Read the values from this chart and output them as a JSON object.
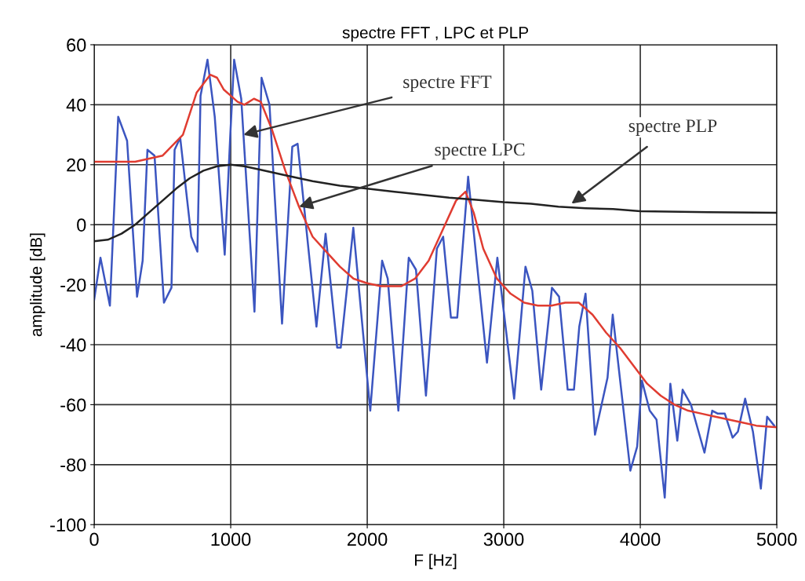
{
  "chart_data": {
    "type": "line",
    "title": "spectre FFT , LPC et PLP",
    "xlabel": "F [Hz]",
    "ylabel": "amplitude [dB]",
    "xlim": [
      0,
      5000
    ],
    "xticks": [
      0,
      1000,
      2000,
      3000,
      4000,
      5000
    ],
    "ylim": [
      -100,
      60
    ],
    "yticks": [
      -100,
      -80,
      -60,
      -40,
      -20,
      0,
      20,
      40,
      60
    ],
    "grid": true,
    "marker": "none",
    "line_style": "solid",
    "series": [
      {
        "color": "#3b55c0",
        "x": [
          0,
          46,
          115,
          176,
          241,
          314,
          355,
          390,
          442,
          511,
          566,
          589,
          630,
          711,
          756,
          779,
          830,
          883,
          956,
          997,
          1025,
          1077,
          1174,
          1226,
          1284,
          1376,
          1451,
          1490,
          1628,
          1695,
          1780,
          1806,
          1898,
          2022,
          2109,
          2150,
          2228,
          2304,
          2357,
          2430,
          2510,
          2556,
          2613,
          2659,
          2739,
          2877,
          2953,
          3076,
          3159,
          3209,
          3274,
          3353,
          3405,
          3468,
          3514,
          3553,
          3599,
          3668,
          3760,
          3798,
          3927,
          3977,
          4012,
          4069,
          4119,
          4179,
          4220,
          4271,
          4310,
          4371,
          4470,
          4527,
          4568,
          4619,
          4676,
          4715,
          4768,
          4825,
          4883,
          4929,
          4981
        ],
        "values": [
          -25,
          -11,
          -27,
          36,
          28,
          -24,
          -12,
          25,
          23,
          -26,
          -21,
          25,
          29,
          -4,
          -9,
          43,
          55,
          36,
          -10,
          30,
          55,
          42,
          -29,
          49,
          40,
          -33,
          26,
          27,
          -34,
          -3,
          -41,
          -41,
          -1,
          -62,
          -12,
          -18,
          -62,
          -11,
          -15,
          -57,
          -8,
          -4,
          -31,
          -31,
          16,
          -46,
          -11,
          -58,
          -14,
          -22,
          -55,
          -21,
          -24,
          -55,
          -55,
          -34,
          -23,
          -70,
          -51,
          -30,
          -82,
          -74,
          -52,
          -62,
          -65,
          -91,
          -53,
          -72,
          -55,
          -60,
          -76,
          -62,
          -63,
          -63,
          -71,
          -69,
          -58,
          -69,
          -88,
          -64,
          -67
        ]
      },
      {
        "color": "#e03c31",
        "x": [
          0,
          300,
          500,
          650,
          750,
          850,
          900,
          950,
          1000,
          1050,
          1100,
          1170,
          1220,
          1300,
          1400,
          1500,
          1600,
          1700,
          1800,
          1900,
          2000,
          2100,
          2250,
          2350,
          2450,
          2550,
          2650,
          2720,
          2780,
          2850,
          2950,
          3050,
          3150,
          3250,
          3350,
          3450,
          3550,
          3650,
          3750,
          3850,
          3950,
          4050,
          4150,
          4250,
          4350,
          4450,
          4550,
          4650,
          4750,
          4850,
          5000
        ],
        "values": [
          21,
          21,
          23,
          30,
          44,
          50,
          49,
          45,
          43,
          41,
          40,
          42,
          41,
          32,
          18,
          6,
          -4,
          -9,
          -14,
          -18,
          -19.5,
          -20.5,
          -20.5,
          -18,
          -12,
          -2,
          8,
          11,
          4,
          -8,
          -18,
          -23,
          -26,
          -27,
          -27,
          -26,
          -26,
          -30,
          -36,
          -41,
          -47,
          -53,
          -57,
          -60,
          -62,
          -63,
          -64,
          -65,
          -66,
          -67,
          -67.5
        ]
      },
      {
        "color": "#222222",
        "x": [
          0,
          100,
          200,
          300,
          400,
          500,
          600,
          700,
          800,
          900,
          1000,
          1100,
          1200,
          1400,
          1600,
          1800,
          2000,
          2200,
          2400,
          2600,
          2800,
          3000,
          3200,
          3400,
          3600,
          3800,
          4000,
          4500,
          5000
        ],
        "values": [
          -5.5,
          -5,
          -3,
          0,
          4,
          8,
          12,
          15.5,
          18,
          19.5,
          20,
          19.5,
          18.5,
          16.5,
          14.5,
          13,
          12,
          11,
          10,
          9,
          8.3,
          7.5,
          7,
          6,
          5.5,
          5.2,
          4.5,
          4.2,
          4
        ]
      }
    ],
    "annotations": [
      {
        "text": "spectre FFT",
        "x": 1093,
        "y": 30
      },
      {
        "text": "spectre LPC",
        "x": 1500,
        "y": 6
      },
      {
        "text": "spectre PLP",
        "x": 3496,
        "y": 7
      }
    ]
  }
}
